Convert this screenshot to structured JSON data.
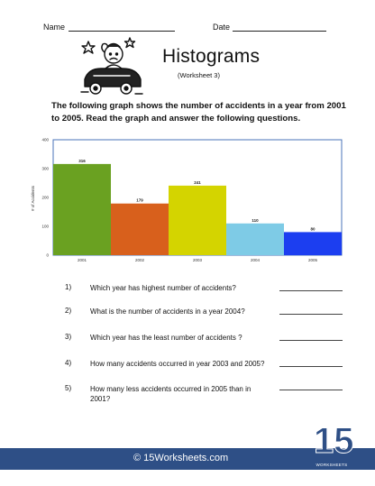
{
  "header": {
    "name_label": "Name",
    "date_label": "Date"
  },
  "title": "Histograms",
  "subtitle": "(Worksheet 3)",
  "intro": "The following graph shows the number of accidents in a year from 2001 to 2005. Read the graph and answer the following questions.",
  "chart_data": {
    "type": "bar",
    "categories": [
      "2001",
      "2002",
      "2003",
      "2004",
      "2005"
    ],
    "values": [
      316,
      179,
      241,
      110,
      80
    ],
    "data_labels": [
      "316",
      "179",
      "241",
      "110",
      "80"
    ],
    "colors": [
      "#6aa121",
      "#d8601c",
      "#d4d400",
      "#7ecbe6",
      "#1c3ef0"
    ],
    "ylabel": "# of Accidents",
    "ylim": [
      0,
      400
    ],
    "yticks": [
      "0",
      "100",
      "200",
      "300",
      "400"
    ],
    "grid": false
  },
  "questions": [
    {
      "num": "1)",
      "text": "Which year has highest number of accidents?"
    },
    {
      "num": "2)",
      "text": "What is the number of accidents in a year 2004?"
    },
    {
      "num": "3)",
      "text": "Which year has the least number of accidents ?"
    },
    {
      "num": "4)",
      "text": "How many accidents occurred in year 2003 and 2005?"
    },
    {
      "num": "5)",
      "text": "How many less accidents occurred in 2005 than in 2001?"
    }
  ],
  "footer": {
    "text": "© 15Worksheets.com",
    "logo_number": "15",
    "logo_word": "WORKSHEETS",
    "bar_color": "#2e4f86"
  }
}
